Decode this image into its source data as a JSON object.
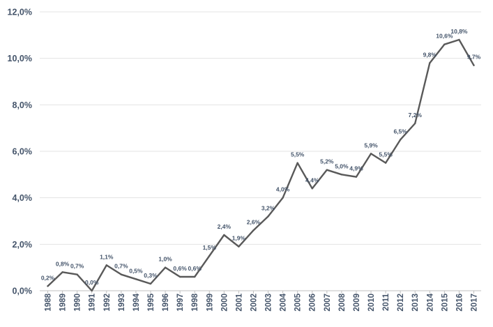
{
  "chart_data": {
    "type": "line",
    "title": "",
    "xlabel": "",
    "ylabel": "",
    "ylim": [
      0,
      12
    ],
    "y_ticks": [
      0,
      2,
      4,
      6,
      8,
      10,
      12
    ],
    "y_tick_labels": [
      "0,0%",
      "2,0%",
      "4,0%",
      "6,0%",
      "8,0%",
      "10,0%",
      "12,0%"
    ],
    "grid": true,
    "legend": "none",
    "line_color": "#595959",
    "x": [
      "1988",
      "1989",
      "1990",
      "1991",
      "1992",
      "1993",
      "1994",
      "1995",
      "1996",
      "1997",
      "1998",
      "1999",
      "2000",
      "2001",
      "2002",
      "2003",
      "2004",
      "2005",
      "2006",
      "2007",
      "2008",
      "2009",
      "2010",
      "2011",
      "2012",
      "2013",
      "2014",
      "2015",
      "2016",
      "2017"
    ],
    "series": [
      {
        "values": [
          0.2,
          0.8,
          0.7,
          0.0,
          1.1,
          0.7,
          0.5,
          0.3,
          1.0,
          0.6,
          0.6,
          1.5,
          2.4,
          1.9,
          2.6,
          3.2,
          4.0,
          5.5,
          4.4,
          5.2,
          5.0,
          4.9,
          5.9,
          5.5,
          6.5,
          7.2,
          9.8,
          10.6,
          10.8,
          9.7
        ],
        "data_labels": [
          "0,2%",
          "0,8%",
          "0,7%",
          "0,0%",
          "1,1%",
          "0,7%",
          "0,5%",
          "0,3%",
          "1,0%",
          "0,6%",
          "0,6%",
          "1,5%",
          "2,4%",
          "1,9%",
          "2,6%",
          "3,2%",
          "4,0%",
          "5,5%",
          "4,4%",
          "5,2%",
          "5,0%",
          "4,9%",
          "5,9%",
          "5,5%",
          "6,5%",
          "7,2%",
          "9,8%",
          "10,6%",
          "10,8%",
          "9,7%"
        ]
      }
    ]
  }
}
